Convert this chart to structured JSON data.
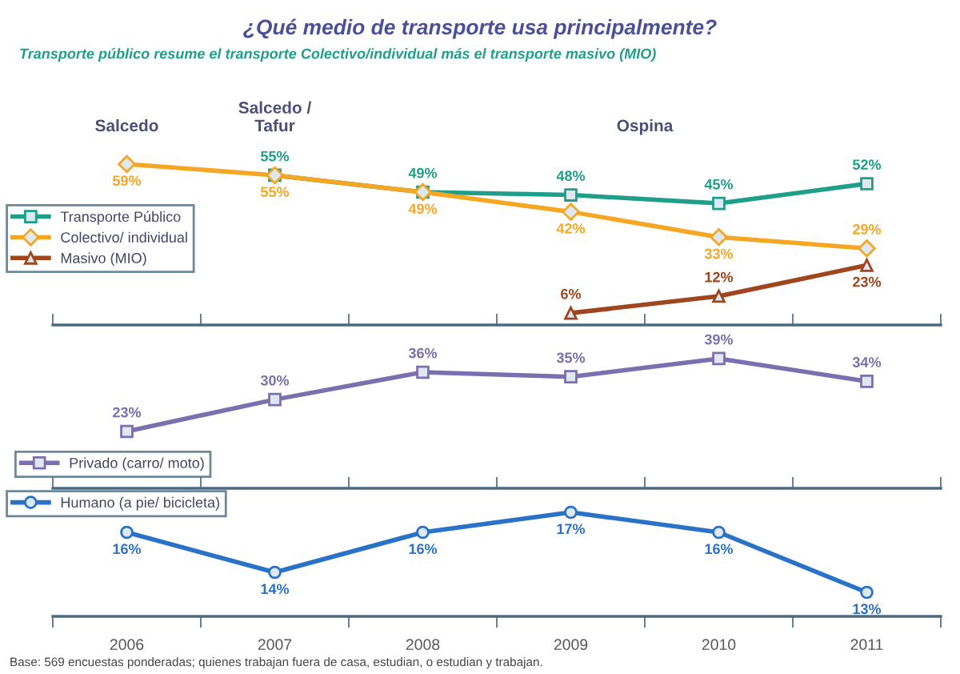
{
  "chart_data": [
    {
      "type": "line",
      "title": "¿Qué medio de transporte usa principalmente?",
      "subtitle": "Transporte público resume el transporte Colectivo/individual más el transporte masivo (MIO)",
      "categories": [
        null,
        null,
        null,
        null,
        null,
        null
      ],
      "tick_labels": false,
      "legend": "center left",
      "line_style": "solid",
      "series": [
        {
          "name": "Transporte Público",
          "color": "#1f9e8a",
          "marker": "square",
          "values": [
            null,
            55,
            49,
            48,
            45,
            52
          ],
          "value_labels": [
            null,
            "55%",
            "49%",
            "48%",
            "45%",
            "52%"
          ]
        },
        {
          "name": "Colectivo/ individual",
          "color": "#f5a623",
          "marker": "diamond",
          "values": [
            59,
            55,
            49,
            42,
            33,
            29
          ],
          "value_labels": [
            "59%",
            "55%",
            "49%",
            "42%",
            "33%",
            "29%"
          ]
        },
        {
          "name": "Masivo (MIO)",
          "color": "#a0461e",
          "marker": "triangle",
          "values": [
            null,
            null,
            null,
            6,
            12,
            23
          ],
          "value_labels": [
            null,
            null,
            null,
            "6%",
            "12%",
            "23%"
          ]
        }
      ],
      "annotations": [
        "Salcedo",
        "Salcedo /\nTafur",
        "Ospina",
        "Base: 569 encuestas ponderadas; quienes trabajan fuera de casa, estudian, o estudian y trabajan."
      ]
    },
    {
      "type": "line",
      "categories": [
        null,
        null,
        null,
        null,
        null,
        null
      ],
      "tick_labels": false,
      "legend": "bottom left",
      "line_style": "solid",
      "series": [
        {
          "name": "Privado (carro/ moto)",
          "color": "#7b6fb0",
          "marker": "square",
          "values": [
            23,
            30,
            36,
            35,
            39,
            34
          ],
          "value_labels": [
            "23%",
            "30%",
            "36%",
            "35%",
            "39%",
            "34%"
          ]
        }
      ]
    },
    {
      "type": "line",
      "categories": [
        "2006",
        "2007",
        "2008",
        "2009",
        "2010",
        "2011"
      ],
      "tick_labels": "x",
      "legend": "top left",
      "line_style": "solid",
      "series": [
        {
          "name": "Humano (a pie/ bicicleta)",
          "color": "#2a72c8",
          "marker": "circle",
          "values": [
            16,
            14,
            16,
            17,
            16,
            13
          ],
          "value_labels": [
            "16%",
            "14%",
            "16%",
            "17%",
            "16%",
            "13%"
          ]
        }
      ]
    }
  ]
}
